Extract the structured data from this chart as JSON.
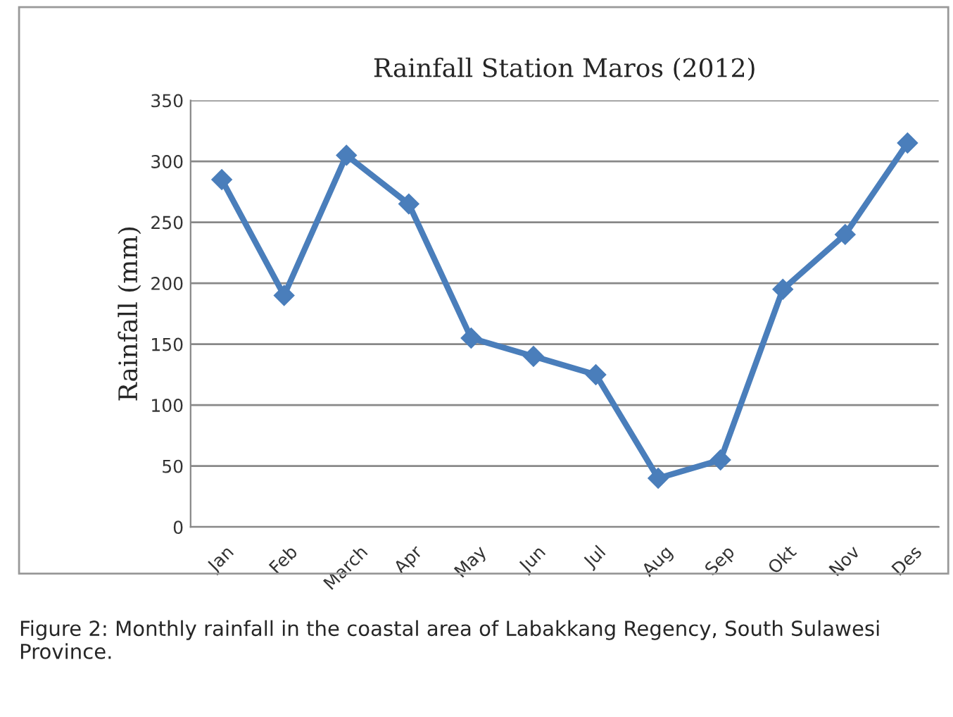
{
  "chart_data": {
    "type": "line",
    "title": "Rainfall Station Maros (2012)",
    "ylabel": "Rainfall (mm)",
    "categories": [
      "Jan",
      "Feb",
      "March",
      "Apr",
      "May",
      "Jun",
      "Jul",
      "Aug",
      "Sep",
      "Okt",
      "Nov",
      "Des"
    ],
    "series": [
      {
        "color": "#4a7ebb",
        "values": [
          285,
          190,
          305,
          265,
          155,
          140,
          125,
          40,
          55,
          195,
          240,
          315
        ]
      }
    ],
    "ylim": [
      0,
      350
    ],
    "yticks": [
      0,
      50,
      100,
      150,
      200,
      250,
      300,
      350
    ],
    "grid": "y",
    "marker": "diamond",
    "line_style": "solid",
    "annotations": [
      "Figure 2: Monthly rainfall in the coastal area of Labakkang Regency, South Sulawesi Province."
    ]
  }
}
